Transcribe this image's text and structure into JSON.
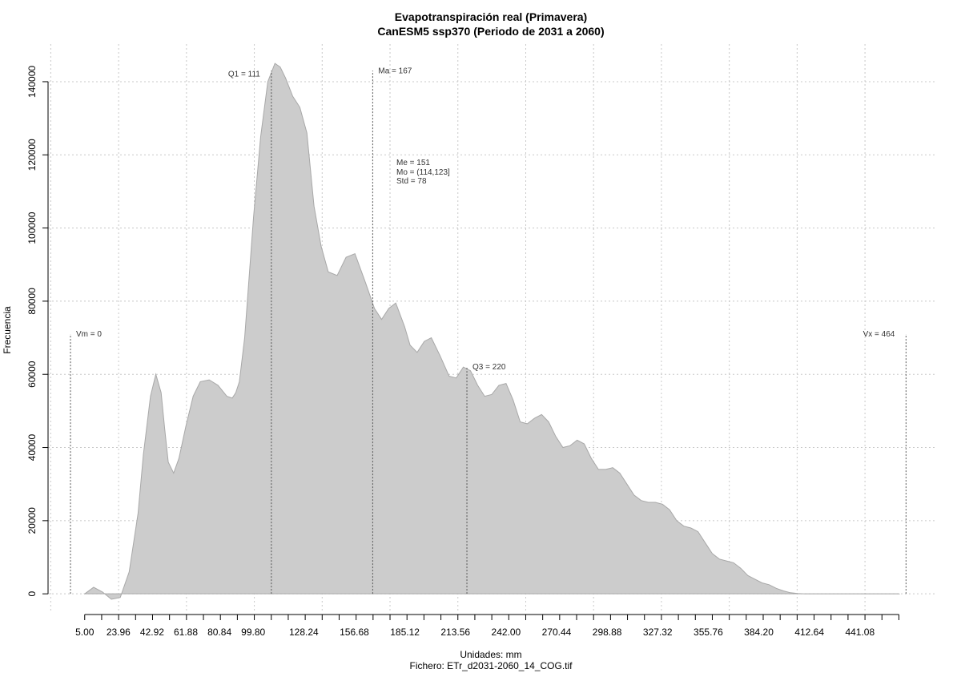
{
  "chart_data": {
    "type": "area",
    "title": "Evapotranspiración real (Primavera)",
    "subtitle": "CanESM5 ssp370 (Periodo de 2031 a 2060)",
    "xlabel": "Unidades: mm",
    "file_label": "Fichero: ETr_d2031-2060_14_COG.tif",
    "ylabel": "Frecuencia",
    "xlim": [
      -3,
      470
    ],
    "ylim": [
      -5000,
      147000
    ],
    "grid": true,
    "x_tick_labels": [
      "5.00",
      "23.96",
      "42.92",
      "61.88",
      "80.84",
      "99.80",
      "128.24",
      "156.68",
      "185.12",
      "213.56",
      "242.00",
      "270.44",
      "298.88",
      "327.32",
      "355.76",
      "384.20",
      "412.64",
      "441.08"
    ],
    "y_ticks": [
      0,
      20000,
      40000,
      60000,
      80000,
      100000,
      120000,
      140000
    ],
    "x": [
      5,
      10,
      15,
      20,
      25,
      30,
      35,
      38,
      42,
      45,
      48,
      50,
      52,
      55,
      58,
      62,
      66,
      70,
      75,
      80,
      85,
      88,
      90,
      92,
      95,
      100,
      104,
      108,
      112,
      115,
      118,
      122,
      126,
      130,
      134,
      138,
      142,
      147,
      152,
      157,
      163,
      168,
      172,
      176,
      180,
      185,
      188,
      192,
      196,
      200,
      205,
      210,
      214,
      218,
      222,
      226,
      230,
      234,
      238,
      242,
      246,
      250,
      254,
      258,
      262,
      266,
      270,
      274,
      278,
      282,
      286,
      290,
      294,
      298,
      302,
      306,
      310,
      314,
      318,
      322,
      326,
      330,
      334,
      338,
      342,
      346,
      350,
      354,
      358,
      362,
      366,
      370,
      374,
      378,
      382,
      386,
      390,
      394,
      398,
      402,
      406,
      410,
      415,
      420,
      430,
      440,
      450,
      460,
      463
    ],
    "values": [
      0,
      1800,
      500,
      -1500,
      -1000,
      6000,
      22000,
      38000,
      54000,
      60000,
      55000,
      45000,
      36000,
      33000,
      37000,
      46000,
      54000,
      58000,
      58500,
      57000,
      54000,
      53500,
      55000,
      58000,
      70000,
      103000,
      125000,
      140000,
      145000,
      144000,
      141000,
      136000,
      133000,
      126000,
      106000,
      95000,
      88000,
      87000,
      92000,
      93000,
      85000,
      78000,
      75000,
      78000,
      79500,
      73000,
      68000,
      66000,
      69000,
      70000,
      65000,
      59500,
      59000,
      62000,
      61000,
      57000,
      54000,
      54500,
      57000,
      57500,
      53000,
      47000,
      46500,
      48000,
      49000,
      47000,
      43000,
      40000,
      40500,
      42000,
      41000,
      37000,
      34000,
      34000,
      34500,
      33000,
      30000,
      27000,
      25500,
      25000,
      25000,
      24500,
      23000,
      20000,
      18500,
      18000,
      17000,
      14000,
      11000,
      9500,
      9000,
      8500,
      7000,
      5000,
      4000,
      3000,
      2500,
      1500,
      800,
      300,
      100,
      0,
      0,
      0,
      0,
      0,
      0,
      0,
      0
    ],
    "markers": [
      {
        "label": "Vm = 0",
        "x": -3,
        "y_top": 71000
      },
      {
        "label": "Q1 = 111",
        "x": 110,
        "y_top": 143000
      },
      {
        "label": "Ma = 167",
        "x": 167,
        "y_top": 143000
      },
      {
        "label": "Q3 = 220",
        "x": 220,
        "y_top": 62000
      },
      {
        "label": "Vx = 464",
        "x": 467,
        "y_top": 71000
      }
    ],
    "stats": [
      "Me = 151",
      "Mo = (114,123]",
      "Std = 78"
    ],
    "colors": {
      "fill": "#cccccc",
      "stroke": "#a8a8a8",
      "grid": "#c8c8c8",
      "marker": "#555555"
    }
  }
}
